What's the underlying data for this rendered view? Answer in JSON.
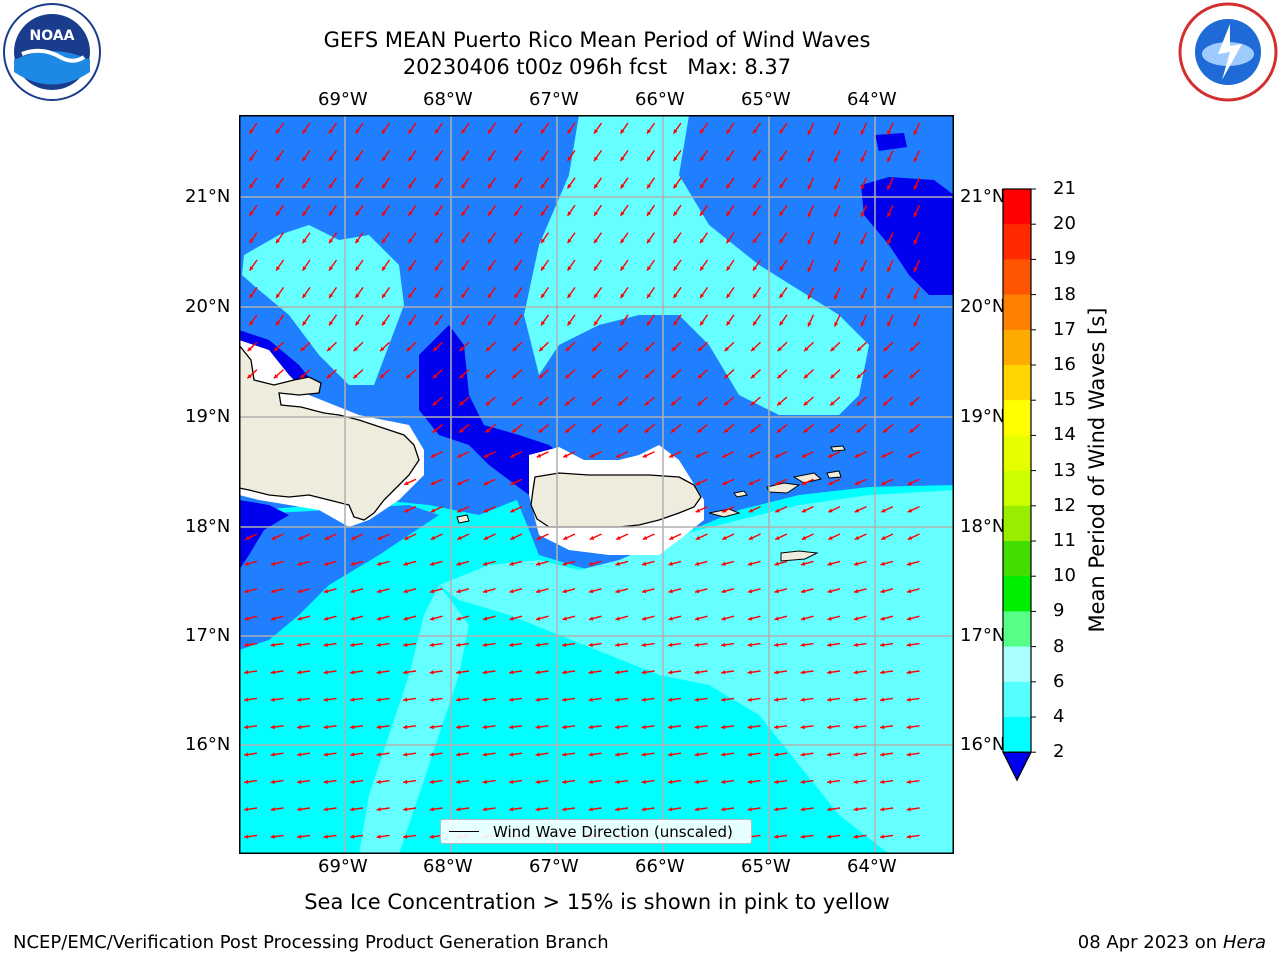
{
  "title_line1": "GEFS MEAN Puerto Rico Mean Period of Wind Waves",
  "title_line2": "20230406 t00z 096h fcst   Max: 8.37",
  "lon_labels": [
    "69°W",
    "68°W",
    "67°W",
    "66°W",
    "65°W",
    "64°W"
  ],
  "lat_labels": [
    "21°N",
    "20°N",
    "19°N",
    "18°N",
    "17°N",
    "16°N"
  ],
  "colorbar": {
    "title": "Mean Period of Wind Waves [s]",
    "ticks": [
      "21",
      "20",
      "19",
      "18",
      "17",
      "16",
      "15",
      "14",
      "13",
      "12",
      "11",
      "10",
      "9",
      "8",
      "6",
      "4",
      "2"
    ],
    "colors": [
      "#ff0000",
      "#ff2a00",
      "#ff5500",
      "#ff8000",
      "#ffaa00",
      "#ffd400",
      "#ffff00",
      "#e6ff00",
      "#ccff00",
      "#99ee00",
      "#44dd00",
      "#00ee00",
      "#55ff88",
      "#aaffff",
      "#55ffff",
      "#00ffff",
      "#0088ff"
    ],
    "under_color": "#0000ee"
  },
  "legend_label": "Wind Wave Direction (unscaled)",
  "caption": "Sea Ice Concentration > 15% is shown in pink to yellow",
  "footer_left": "NCEP/EMC/Verification Post Processing Product Generation Branch",
  "footer_right_date": "08 Apr 2023 on ",
  "footer_right_host": "Hera",
  "logo_left": "noaa-logo",
  "logo_right": "national-weather-service-logo",
  "colors": {
    "deep": "#0000ee",
    "blue": "#1f7fff",
    "cyan": "#00ffff",
    "lightcyan": "#66ffff",
    "land": "#eeecdc",
    "arrow": "#ff0000"
  }
}
